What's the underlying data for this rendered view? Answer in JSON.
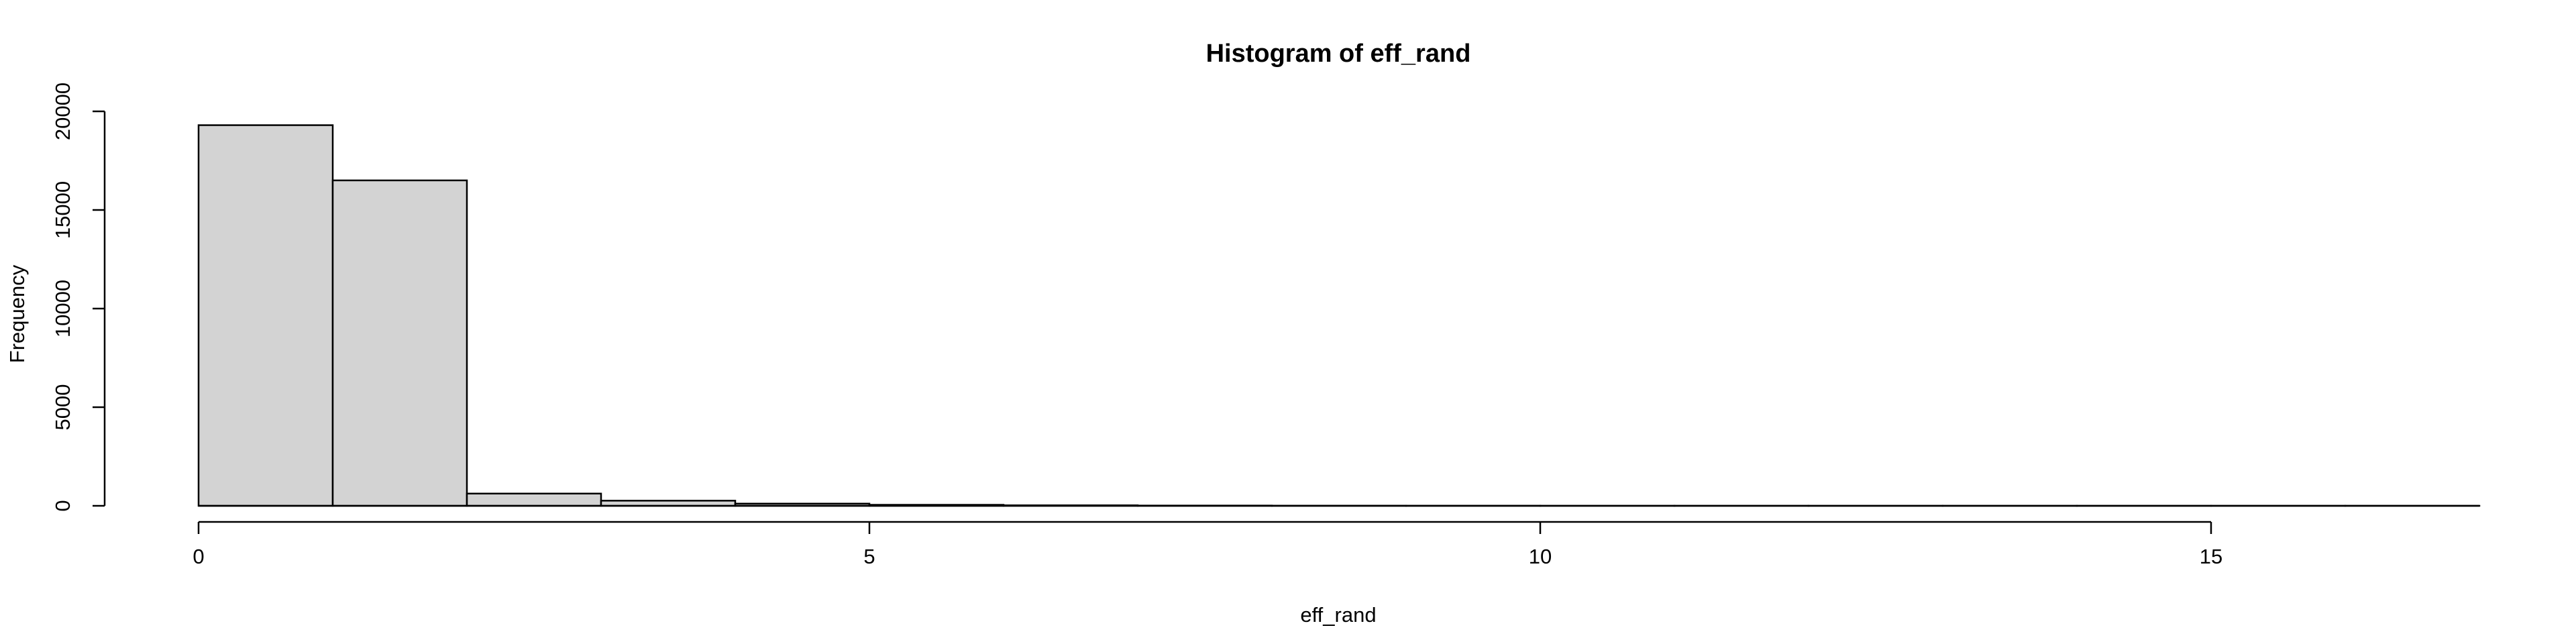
{
  "chart_data": {
    "type": "bar",
    "title": "Histogram of eff_rand",
    "xlabel": "eff_rand",
    "ylabel": "Frequency",
    "bar_color": "#d3d3d3",
    "border_color": "#000000",
    "bins": [
      {
        "from": 0,
        "to": 1,
        "count": 19300
      },
      {
        "from": 1,
        "to": 2,
        "count": 16500
      },
      {
        "from": 2,
        "to": 3,
        "count": 620
      },
      {
        "from": 3,
        "to": 4,
        "count": 260
      },
      {
        "from": 4,
        "to": 5,
        "count": 110
      },
      {
        "from": 5,
        "to": 6,
        "count": 50
      },
      {
        "from": 6,
        "to": 7,
        "count": 25
      },
      {
        "from": 7,
        "to": 8,
        "count": 12
      },
      {
        "from": 8,
        "to": 9,
        "count": 6
      },
      {
        "from": 9,
        "to": 10,
        "count": 4
      },
      {
        "from": 10,
        "to": 11,
        "count": 2
      },
      {
        "from": 11,
        "to": 12,
        "count": 2
      },
      {
        "from": 12,
        "to": 13,
        "count": 1
      },
      {
        "from": 13,
        "to": 14,
        "count": 1
      },
      {
        "from": 14,
        "to": 15,
        "count": 1
      },
      {
        "from": 15,
        "to": 16,
        "count": 1
      },
      {
        "from": 16,
        "to": 17,
        "count": 1
      }
    ],
    "xlim": [
      0,
      17
    ],
    "ylim": [
      0,
      20000
    ],
    "x_ticks": [
      0,
      5,
      10,
      15
    ],
    "x_tick_labels": [
      "0",
      "5",
      "10",
      "15"
    ],
    "y_ticks": [
      0,
      5000,
      10000,
      15000,
      20000
    ],
    "y_tick_labels": [
      "0",
      "5000",
      "10000",
      "15000",
      "20000"
    ],
    "grid": false,
    "legend": "none"
  }
}
